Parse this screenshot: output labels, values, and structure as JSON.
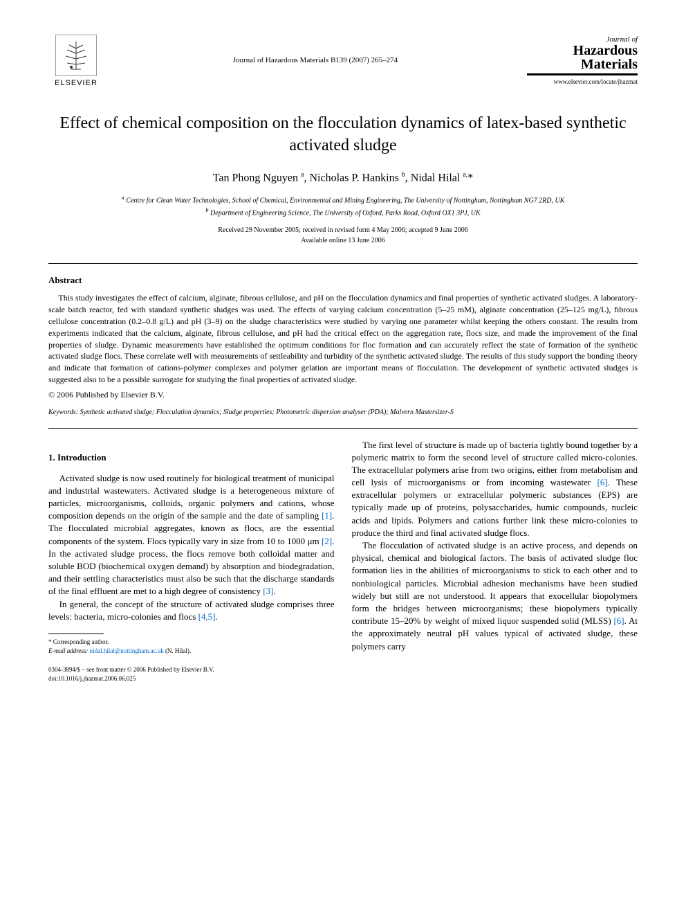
{
  "header": {
    "publisher": "ELSEVIER",
    "journal_ref": "Journal of Hazardous Materials B139 (2007) 265–274",
    "journal_label": "Journal of",
    "journal_name1": "Hazardous",
    "journal_name2": "Materials",
    "journal_url": "www.elsevier.com/locate/jhazmat"
  },
  "title": "Effect of chemical composition on the flocculation dynamics of latex-based synthetic activated sludge",
  "authors_html": "Tan Phong Nguyen <sup>a</sup>, Nicholas P. Hankins <sup>b</sup>, Nidal Hilal <sup>a,</sup>*",
  "affiliations": {
    "a": "Centre for Clean Water Technologies, School of Chemical, Environmental and Mining Engineering, The University of Nottingham, Nottingham NG7 2RD, UK",
    "b": "Department of Engineering Science, The University of Oxford, Parks Road, Oxford OX1 3PJ, UK"
  },
  "dates": {
    "received": "Received 29 November 2005; received in revised form 4 May 2006; accepted 9 June 2006",
    "online": "Available online 13 June 2006"
  },
  "abstract": {
    "heading": "Abstract",
    "text": "This study investigates the effect of calcium, alginate, fibrous cellulose, and pH on the flocculation dynamics and final properties of synthetic activated sludges. A laboratory-scale batch reactor, fed with standard synthetic sludges was used. The effects of varying calcium concentration (5–25 mM), alginate concentration (25–125 mg/L), fibrous cellulose concentration (0.2–0.8 g/L) and pH (3–9) on the sludge characteristics were studied by varying one parameter whilst keeping the others constant. The results from experiments indicated that the calcium, alginate, fibrous cellulose, and pH had the critical effect on the aggregation rate, flocs size, and made the improvement of the final properties of sludge. Dynamic measurements have established the optimum conditions for floc formation and can accurately reflect the state of formation of the synthetic activated sludge flocs. These correlate well with measurements of settleability and turbidity of the synthetic activated sludge. The results of this study support the bonding theory and indicate that formation of cations-polymer complexes and polymer gelation are important means of flocculation. The development of synthetic activated sludges is suggested also to be a possible surrogate for studying the final properties of activated sludge.",
    "copyright": "© 2006 Published by Elsevier B.V."
  },
  "keywords": {
    "label": "Keywords:",
    "text": "Synthetic activated sludge; Flocculation dynamics; Sludge properties; Photometric dispersion analyser (PDA); Malvern Mastersizer-S"
  },
  "section1": {
    "heading": "1. Introduction",
    "p1_a": "Activated sludge is now used routinely for biological treatment of municipal and industrial wastewaters. Activated sludge is a heterogeneous mixture of particles, microorganisms, colloids, organic polymers and cations, whose composition depends on the origin of the sample and the date of sampling ",
    "ref1": "[1]",
    "p1_b": ". The flocculated microbial aggregates, known as flocs, are the essential components of the system. Flocs typically vary in size from 10 to 1000 μm ",
    "ref2": "[2]",
    "p1_c": ". In the activated sludge process, the flocs remove both colloidal matter and soluble BOD (biochemical oxygen demand) by absorption and biodegradation, and their settling characteristics must also be such that the discharge standards of the final effluent are met to a high degree of consistency ",
    "ref3": "[3]",
    "p1_d": ".",
    "p2_a": "In general, the concept of the structure of activated sludge comprises three levels: bacteria, micro-colonies and flocs ",
    "ref45": "[4,5]",
    "p2_b": ". ",
    "p3_a": "The first level of structure is made up of bacteria tightly bound together by a polymeric matrix to form the second level of structure called micro-colonies. The extracellular polymers arise from two origins, either from metabolism and cell lysis of microorganisms or from incoming wastewater ",
    "ref6a": "[6]",
    "p3_b": ". These extracellular polymers or extracellular polymeric substances (EPS) are typically made up of proteins, polysaccharides, humic compounds, nucleic acids and lipids. Polymers and cations further link these micro-colonies to produce the third and final activated sludge flocs.",
    "p4_a": "The flocculation of activated sludge is an active process, and depends on physical, chemical and biological factors. The basis of activated sludge floc formation lies in the abilities of microorganisms to stick to each other and to nonbiological particles. Microbial adhesion mechanisms have been studied widely but still are not understood. It appears that exocellular biopolymers form the bridges between microorganisms; these biopolymers typically contribute 15–20% by weight of mixed liquor suspended solid (MLSS) ",
    "ref6b": "[6]",
    "p4_b": ". At the approximately neutral pH values typical of activated sludge, these polymers carry"
  },
  "footnote": {
    "corr": "* Corresponding author.",
    "email_label": "E-mail address:",
    "email": "nidal.hilal@nottingham.ac.uk",
    "email_name": "(N. Hilal)."
  },
  "footer": {
    "issn": "0304-3894/$ – see front matter © 2006 Published by Elsevier B.V.",
    "doi": "doi:10.1016/j.jhazmat.2006.06.025"
  },
  "colors": {
    "link": "#0066cc",
    "text": "#000000",
    "bg": "#ffffff"
  }
}
